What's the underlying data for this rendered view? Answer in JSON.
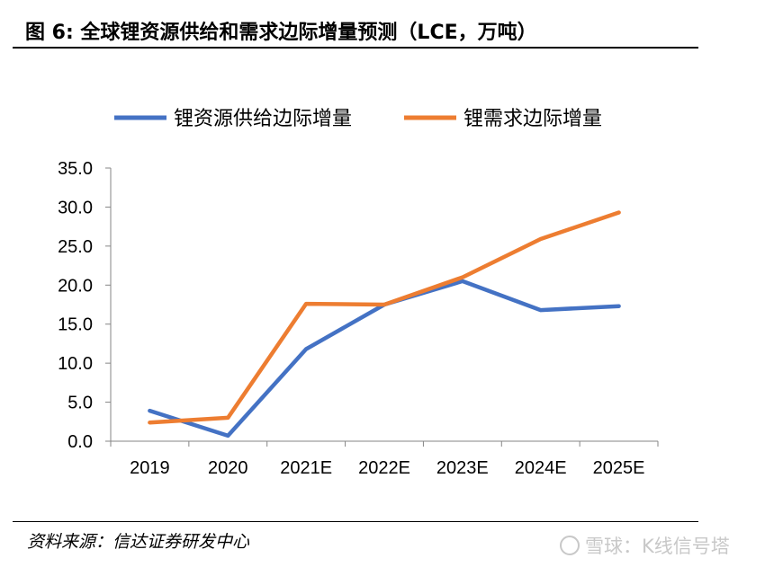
{
  "figure": {
    "title": "图 6:  全球锂资源供给和需求边际增量预测（LCE，万吨）",
    "source": "资料来源：信达证券研发中心",
    "watermark": "雪球：K线信号塔"
  },
  "chart_data": {
    "type": "line",
    "categories": [
      "2019",
      "2020",
      "2021E",
      "2022E",
      "2023E",
      "2024E",
      "2025E"
    ],
    "series": [
      {
        "name": "锂资源供给边际增量",
        "color": "#4472C4",
        "values": [
          3.9,
          0.7,
          11.8,
          17.5,
          20.5,
          16.8,
          17.3
        ]
      },
      {
        "name": "锂需求边际增量",
        "color": "#ED7D31",
        "values": [
          2.4,
          3.0,
          17.6,
          17.5,
          21.0,
          25.9,
          29.3
        ]
      }
    ],
    "yticks": [
      "0.0",
      "5.0",
      "10.0",
      "15.0",
      "20.0",
      "25.0",
      "30.0",
      "35.0"
    ],
    "ylim": [
      0,
      35
    ],
    "legend_position": "top",
    "grid": false
  }
}
